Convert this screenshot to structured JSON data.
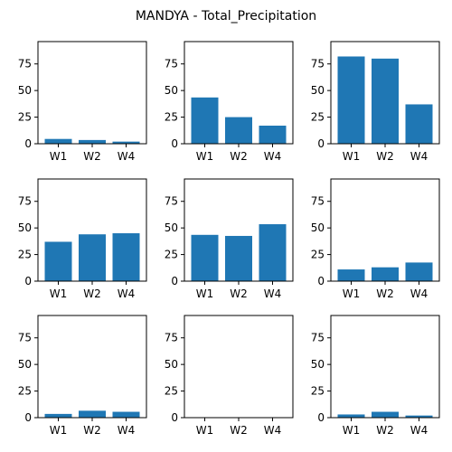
{
  "figure": {
    "title": "MANDYA - Total_Precipitation"
  },
  "chart_data": {
    "type": "bar",
    "layout": "3x3 grid of subplots",
    "shared_y": true,
    "bar_color": "#1f77b4",
    "ylim": [
      0,
      96
    ],
    "yticks": [
      0,
      25,
      50,
      75
    ],
    "categories": [
      "W1",
      "W2",
      "W4"
    ],
    "subplots": [
      {
        "values": [
          4.5,
          3.5,
          2.0
        ]
      },
      {
        "values": [
          43.5,
          25.0,
          17.0
        ]
      },
      {
        "values": [
          82.0,
          80.0,
          37.0
        ]
      },
      {
        "values": [
          37.0,
          44.0,
          45.0
        ]
      },
      {
        "values": [
          43.5,
          42.5,
          53.5
        ]
      },
      {
        "values": [
          11.0,
          13.0,
          17.5
        ]
      },
      {
        "values": [
          3.5,
          6.5,
          5.5
        ]
      },
      {
        "values": [
          0.0,
          0.0,
          0.0
        ]
      },
      {
        "values": [
          3.0,
          5.5,
          2.0
        ]
      }
    ]
  }
}
